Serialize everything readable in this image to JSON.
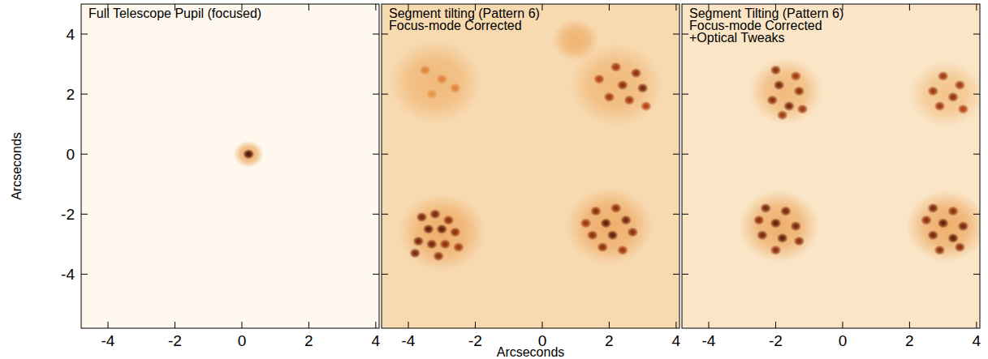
{
  "chart_data": [
    {
      "type": "image",
      "title": [
        "Full Telescope Pupil (focused)"
      ],
      "ylabel": "Arcseconds",
      "xlim": [
        -4.8,
        4.1
      ],
      "ylim": [
        -5.8,
        5.0
      ],
      "xticks": [
        -4,
        -2,
        0,
        2,
        4
      ],
      "yticks": [
        -4,
        -2,
        0,
        2,
        4
      ],
      "zlim": [
        0,
        1
      ],
      "background_level": 0.02,
      "halos": [
        {
          "x": 0.2,
          "y": 0.0,
          "radius": 0.45,
          "value": 0.4
        }
      ],
      "spots": [
        {
          "x": 0.2,
          "y": 0.0,
          "value": 1.0
        }
      ]
    },
    {
      "type": "image",
      "title": [
        "Segment tilting (Pattern 6)",
        "Focus-mode Corrected"
      ],
      "xlabel": "Arcseconds",
      "tick_labels": "x",
      "xlim": [
        -4.8,
        4.1
      ],
      "ylim": [
        -5.8,
        5.0
      ],
      "xticks": [
        -4,
        -2,
        0,
        2,
        4
      ],
      "yticks": [
        -4,
        -2,
        0,
        2,
        4
      ],
      "zlim": [
        0,
        1
      ],
      "background_level": 0.22,
      "halos": [
        {
          "x": -3.2,
          "y": 2.4,
          "radius": 1.4,
          "value": 0.36
        },
        {
          "x": 2.2,
          "y": 2.3,
          "radius": 1.4,
          "value": 0.36
        },
        {
          "x": 1.0,
          "y": 3.8,
          "radius": 0.7,
          "value": 0.38
        },
        {
          "x": -3.0,
          "y": -2.6,
          "radius": 1.3,
          "value": 0.4
        },
        {
          "x": 2.0,
          "y": -2.4,
          "radius": 1.3,
          "value": 0.4
        }
      ],
      "spots": [
        {
          "x": -3.5,
          "y": 2.8,
          "value": 0.55
        },
        {
          "x": -3.0,
          "y": 2.5,
          "value": 0.55
        },
        {
          "x": -2.6,
          "y": 2.2,
          "value": 0.55
        },
        {
          "x": -3.3,
          "y": 2.0,
          "value": 0.5
        },
        {
          "x": 2.2,
          "y": 2.9,
          "value": 0.8
        },
        {
          "x": 2.8,
          "y": 2.7,
          "value": 0.85
        },
        {
          "x": 1.7,
          "y": 2.5,
          "value": 0.75
        },
        {
          "x": 2.4,
          "y": 2.3,
          "value": 0.85
        },
        {
          "x": 3.0,
          "y": 2.2,
          "value": 0.9
        },
        {
          "x": 2.0,
          "y": 1.9,
          "value": 0.8
        },
        {
          "x": 2.6,
          "y": 1.8,
          "value": 0.8
        },
        {
          "x": 3.1,
          "y": 1.6,
          "value": 0.75
        },
        {
          "x": -3.6,
          "y": -2.1,
          "value": 0.9
        },
        {
          "x": -3.2,
          "y": -2.0,
          "value": 0.9
        },
        {
          "x": -2.8,
          "y": -2.2,
          "value": 0.85
        },
        {
          "x": -3.4,
          "y": -2.5,
          "value": 0.95
        },
        {
          "x": -3.0,
          "y": -2.5,
          "value": 0.95
        },
        {
          "x": -2.6,
          "y": -2.6,
          "value": 0.85
        },
        {
          "x": -3.7,
          "y": -2.9,
          "value": 0.9
        },
        {
          "x": -3.3,
          "y": -3.0,
          "value": 0.9
        },
        {
          "x": -2.9,
          "y": -3.0,
          "value": 0.85
        },
        {
          "x": -2.5,
          "y": -3.1,
          "value": 0.8
        },
        {
          "x": -3.8,
          "y": -3.3,
          "value": 0.9
        },
        {
          "x": -3.1,
          "y": -3.4,
          "value": 0.85
        },
        {
          "x": 1.6,
          "y": -1.9,
          "value": 0.85
        },
        {
          "x": 2.2,
          "y": -1.8,
          "value": 0.85
        },
        {
          "x": 1.3,
          "y": -2.3,
          "value": 0.8
        },
        {
          "x": 1.9,
          "y": -2.3,
          "value": 0.95
        },
        {
          "x": 2.5,
          "y": -2.2,
          "value": 0.9
        },
        {
          "x": 1.5,
          "y": -2.7,
          "value": 0.85
        },
        {
          "x": 2.1,
          "y": -2.7,
          "value": 0.95
        },
        {
          "x": 2.7,
          "y": -2.6,
          "value": 0.85
        },
        {
          "x": 1.8,
          "y": -3.1,
          "value": 0.85
        },
        {
          "x": 2.4,
          "y": -3.2,
          "value": 0.8
        }
      ]
    },
    {
      "type": "image",
      "title": [
        "Segment Tilting (Pattern 6)",
        "Focus-mode Corrected",
        "+Optical Tweaks"
      ],
      "tick_labels": "x",
      "xlim": [
        -4.8,
        4.1
      ],
      "ylim": [
        -5.8,
        5.0
      ],
      "xticks": [
        -4,
        -2,
        0,
        2,
        4
      ],
      "yticks": [
        -4,
        -2,
        0,
        2,
        4
      ],
      "zlim": [
        0,
        1
      ],
      "background_level": 0.15,
      "halos": [
        {
          "x": -1.7,
          "y": 2.1,
          "radius": 1.1,
          "value": 0.36
        },
        {
          "x": 3.1,
          "y": 2.0,
          "radius": 1.1,
          "value": 0.32
        },
        {
          "x": -1.9,
          "y": -2.4,
          "radius": 1.2,
          "value": 0.4
        },
        {
          "x": 3.1,
          "y": -2.4,
          "radius": 1.2,
          "value": 0.4
        }
      ],
      "spots": [
        {
          "x": -2.0,
          "y": 2.8,
          "value": 0.85
        },
        {
          "x": -1.4,
          "y": 2.6,
          "value": 0.8
        },
        {
          "x": -1.9,
          "y": 2.3,
          "value": 0.9
        },
        {
          "x": -1.3,
          "y": 2.1,
          "value": 0.85
        },
        {
          "x": -2.1,
          "y": 1.8,
          "value": 0.85
        },
        {
          "x": -1.6,
          "y": 1.6,
          "value": 0.9
        },
        {
          "x": -1.8,
          "y": 1.3,
          "value": 0.8
        },
        {
          "x": -1.2,
          "y": 1.5,
          "value": 0.8
        },
        {
          "x": 3.0,
          "y": 2.6,
          "value": 0.8
        },
        {
          "x": 3.5,
          "y": 2.3,
          "value": 0.8
        },
        {
          "x": 2.7,
          "y": 2.1,
          "value": 0.8
        },
        {
          "x": 3.3,
          "y": 1.9,
          "value": 0.85
        },
        {
          "x": 2.9,
          "y": 1.6,
          "value": 0.8
        },
        {
          "x": 3.6,
          "y": 1.5,
          "value": 0.75
        },
        {
          "x": -2.3,
          "y": -1.8,
          "value": 0.9
        },
        {
          "x": -1.7,
          "y": -1.9,
          "value": 0.9
        },
        {
          "x": -2.5,
          "y": -2.2,
          "value": 0.85
        },
        {
          "x": -2.0,
          "y": -2.3,
          "value": 0.95
        },
        {
          "x": -1.4,
          "y": -2.4,
          "value": 0.9
        },
        {
          "x": -2.4,
          "y": -2.7,
          "value": 0.9
        },
        {
          "x": -1.8,
          "y": -2.8,
          "value": 0.95
        },
        {
          "x": -1.3,
          "y": -2.9,
          "value": 0.85
        },
        {
          "x": -2.0,
          "y": -3.2,
          "value": 0.85
        },
        {
          "x": 2.7,
          "y": -1.8,
          "value": 0.9
        },
        {
          "x": 3.3,
          "y": -1.9,
          "value": 0.85
        },
        {
          "x": 2.5,
          "y": -2.2,
          "value": 0.85
        },
        {
          "x": 3.0,
          "y": -2.3,
          "value": 0.95
        },
        {
          "x": 3.6,
          "y": -2.4,
          "value": 0.9
        },
        {
          "x": 2.7,
          "y": -2.7,
          "value": 0.9
        },
        {
          "x": 3.3,
          "y": -2.8,
          "value": 0.95
        },
        {
          "x": 2.9,
          "y": -3.2,
          "value": 0.85
        },
        {
          "x": 3.5,
          "y": -3.1,
          "value": 0.85
        }
      ]
    }
  ]
}
